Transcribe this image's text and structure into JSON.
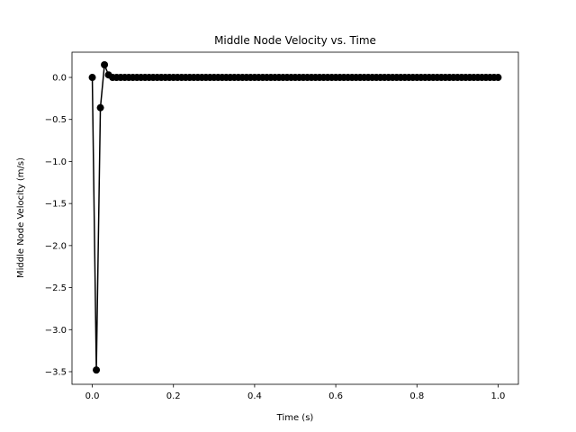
{
  "chart_data": {
    "type": "line",
    "title": "Middle Node Velocity vs. Time",
    "xlabel": "Time (s)",
    "ylabel": "Middle Node Velocity (m/s)",
    "xlim": [
      -0.05,
      1.05
    ],
    "ylim": [
      -3.65,
      0.3
    ],
    "x_ticks": [
      0.0,
      0.2,
      0.4,
      0.6,
      0.8,
      1.0
    ],
    "x_tick_labels": [
      "0.0",
      "0.2",
      "0.4",
      "0.6",
      "0.8",
      "1.0"
    ],
    "y_ticks": [
      0.0,
      -0.5,
      -1.0,
      -1.5,
      -2.0,
      -2.5,
      -3.0,
      -3.5
    ],
    "y_tick_labels": [
      "0.0",
      "−0.5",
      "−1.0",
      "−1.5",
      "−2.0",
      "−2.5",
      "−3.0",
      "−3.5"
    ],
    "grid": false,
    "legend": "none",
    "series": [
      {
        "color": "#000000",
        "marker": "circle",
        "x": [
          0.0,
          0.01,
          0.02,
          0.03,
          0.04,
          0.05,
          0.06,
          0.07,
          0.08,
          0.09,
          0.1,
          0.11,
          0.12,
          0.13,
          0.14,
          0.15,
          0.16,
          0.17,
          0.18,
          0.19,
          0.2,
          0.21,
          0.22,
          0.23,
          0.24,
          0.25,
          0.26,
          0.27,
          0.28,
          0.29,
          0.3,
          0.31,
          0.32,
          0.33,
          0.34,
          0.35,
          0.36,
          0.37,
          0.38,
          0.39,
          0.4,
          0.41,
          0.42,
          0.43,
          0.44,
          0.45,
          0.46,
          0.47,
          0.48,
          0.49,
          0.5,
          0.51,
          0.52,
          0.53,
          0.54,
          0.55,
          0.56,
          0.57,
          0.58,
          0.59,
          0.6,
          0.61,
          0.62,
          0.63,
          0.64,
          0.65,
          0.66,
          0.67,
          0.68,
          0.69,
          0.7,
          0.71,
          0.72,
          0.73,
          0.74,
          0.75,
          0.76,
          0.77,
          0.78,
          0.79,
          0.8,
          0.81,
          0.82,
          0.83,
          0.84,
          0.85,
          0.86,
          0.87,
          0.88,
          0.89,
          0.9,
          0.91,
          0.92,
          0.93,
          0.94,
          0.95,
          0.96,
          0.97,
          0.98,
          0.99,
          1.0
        ],
        "y": [
          0.0,
          -3.48,
          -0.36,
          0.15,
          0.03,
          0.0,
          0.0,
          0.0,
          0.0,
          0.0,
          0.0,
          0.0,
          0.0,
          0.0,
          0.0,
          0.0,
          0.0,
          0.0,
          0.0,
          0.0,
          0.0,
          0.0,
          0.0,
          0.0,
          0.0,
          0.0,
          0.0,
          0.0,
          0.0,
          0.0,
          0.0,
          0.0,
          0.0,
          0.0,
          0.0,
          0.0,
          0.0,
          0.0,
          0.0,
          0.0,
          0.0,
          0.0,
          0.0,
          0.0,
          0.0,
          0.0,
          0.0,
          0.0,
          0.0,
          0.0,
          0.0,
          0.0,
          0.0,
          0.0,
          0.0,
          0.0,
          0.0,
          0.0,
          0.0,
          0.0,
          0.0,
          0.0,
          0.0,
          0.0,
          0.0,
          0.0,
          0.0,
          0.0,
          0.0,
          0.0,
          0.0,
          0.0,
          0.0,
          0.0,
          0.0,
          0.0,
          0.0,
          0.0,
          0.0,
          0.0,
          0.0,
          0.0,
          0.0,
          0.0,
          0.0,
          0.0,
          0.0,
          0.0,
          0.0,
          0.0,
          0.0,
          0.0,
          0.0,
          0.0,
          0.0,
          0.0,
          0.0,
          0.0,
          0.0,
          0.0,
          0.0
        ]
      }
    ]
  }
}
